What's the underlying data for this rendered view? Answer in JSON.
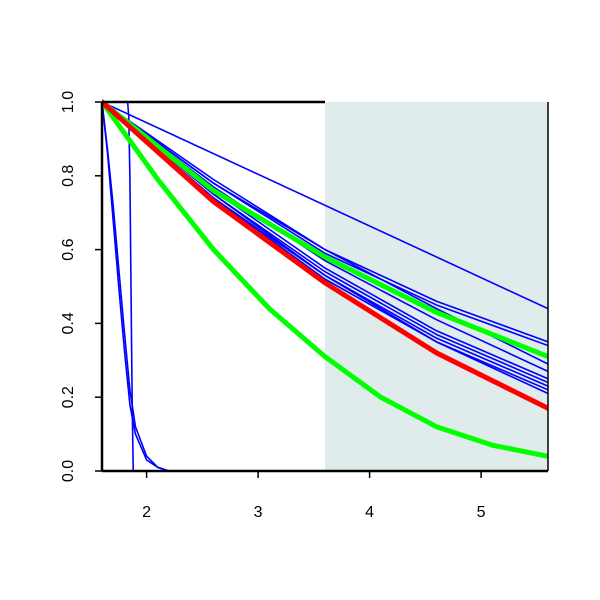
{
  "chart_data": {
    "type": "line",
    "title": "",
    "xlabel": "",
    "ylabel": "",
    "xlim": [
      1.6,
      5.6
    ],
    "ylim": [
      0.0,
      1.0
    ],
    "x_ticks": [
      "2",
      "3",
      "4",
      "5"
    ],
    "y_ticks": [
      "0.0",
      "0.2",
      "0.4",
      "0.6",
      "0.8",
      "1.0"
    ],
    "grid": false,
    "shaded_region": {
      "x": [
        3.6,
        5.6
      ],
      "color": "#dfeceb"
    },
    "series": [
      {
        "color": "#0000ff",
        "weight": "thin",
        "x": [
          1.6,
          1.65,
          1.7,
          1.75,
          1.8,
          1.85,
          1.9,
          2.0,
          2.1,
          2.2,
          2.3,
          2.5
        ],
        "y": [
          1.0,
          0.86,
          0.68,
          0.5,
          0.33,
          0.18,
          0.1,
          0.03,
          0.01,
          0.0,
          0.0,
          0.0
        ]
      },
      {
        "color": "#0000ff",
        "weight": "thin",
        "x": [
          1.6,
          1.65,
          1.7,
          1.75,
          1.8,
          1.85,
          1.9,
          2.0,
          2.1,
          2.2,
          2.3,
          2.5
        ],
        "y": [
          1.0,
          0.87,
          0.72,
          0.55,
          0.38,
          0.22,
          0.12,
          0.04,
          0.01,
          0.0,
          0.0,
          0.0
        ]
      },
      {
        "color": "#0000ff",
        "weight": "thin",
        "x": [
          1.6,
          1.83,
          1.84,
          1.85,
          1.86,
          1.87,
          1.88,
          5.6
        ],
        "y": [
          1.0,
          1.0,
          0.96,
          0.8,
          0.5,
          0.2,
          0.0,
          0.0
        ]
      },
      {
        "color": "#0000ff",
        "weight": "thin",
        "x": [
          1.6,
          5.6
        ],
        "y": [
          1.0,
          0.44
        ]
      },
      {
        "color": "#0000ff",
        "weight": "thin",
        "x": [
          1.6,
          2.6,
          3.6,
          4.6,
          5.6
        ],
        "y": [
          1.0,
          0.78,
          0.6,
          0.46,
          0.35
        ]
      },
      {
        "color": "#0000ff",
        "weight": "thin",
        "x": [
          1.6,
          2.6,
          3.6,
          4.6,
          5.6
        ],
        "y": [
          1.0,
          0.78,
          0.59,
          0.45,
          0.34
        ]
      },
      {
        "color": "#0000ff",
        "weight": "thin",
        "x": [
          1.6,
          2.6,
          3.6,
          4.6,
          5.6
        ],
        "y": [
          1.0,
          0.79,
          0.6,
          0.44,
          0.29
        ]
      },
      {
        "color": "#0000ff",
        "weight": "thin",
        "x": [
          1.6,
          2.6,
          3.6,
          4.6,
          5.6
        ],
        "y": [
          1.0,
          0.77,
          0.57,
          0.41,
          0.27
        ]
      },
      {
        "color": "#0000ff",
        "weight": "thin",
        "x": [
          1.6,
          2.6,
          3.6,
          4.6,
          5.6
        ],
        "y": [
          1.0,
          0.76,
          0.55,
          0.38,
          0.25
        ]
      },
      {
        "color": "#0000ff",
        "weight": "thin",
        "x": [
          1.6,
          2.6,
          3.6,
          4.6,
          5.6
        ],
        "y": [
          1.0,
          0.75,
          0.54,
          0.37,
          0.24
        ]
      },
      {
        "color": "#0000ff",
        "weight": "thin",
        "x": [
          1.6,
          2.6,
          3.6,
          4.6,
          5.6
        ],
        "y": [
          1.0,
          0.75,
          0.53,
          0.36,
          0.23
        ]
      },
      {
        "color": "#0000ff",
        "weight": "thin",
        "x": [
          1.6,
          2.6,
          3.6,
          4.6,
          5.6
        ],
        "y": [
          1.0,
          0.74,
          0.53,
          0.35,
          0.22
        ]
      },
      {
        "color": "#0000ff",
        "weight": "thin",
        "x": [
          1.6,
          2.6,
          3.6,
          4.6,
          5.6
        ],
        "y": [
          1.0,
          0.74,
          0.52,
          0.35,
          0.21
        ]
      },
      {
        "color": "#00ff00",
        "weight": "thick",
        "x": [
          1.6,
          2.6,
          3.6,
          4.6,
          5.6
        ],
        "y": [
          1.0,
          0.76,
          0.58,
          0.43,
          0.31
        ]
      },
      {
        "color": "#00ff00",
        "weight": "thick",
        "x": [
          1.6,
          2.1,
          2.6,
          3.1,
          3.6,
          4.1,
          4.6,
          5.1,
          5.6
        ],
        "y": [
          1.0,
          0.79,
          0.6,
          0.44,
          0.31,
          0.2,
          0.12,
          0.07,
          0.04
        ]
      },
      {
        "color": "#ff0000",
        "weight": "thick",
        "x": [
          1.6,
          2.6,
          3.6,
          4.6,
          5.6
        ],
        "y": [
          1.0,
          0.73,
          0.51,
          0.32,
          0.17
        ]
      }
    ]
  }
}
